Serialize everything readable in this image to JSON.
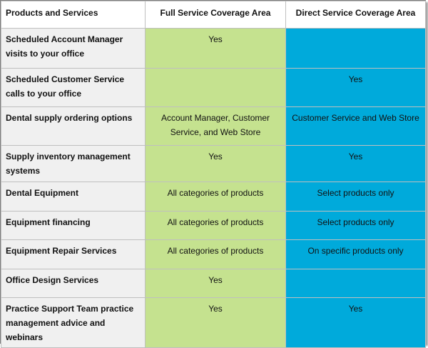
{
  "header": {
    "col1": "Products and Services",
    "col2": "Full Service Coverage Area",
    "col3": "Direct Service  Coverage Area"
  },
  "rows": [
    {
      "service": "Scheduled Account Manager visits to your office",
      "full": "Yes",
      "direct": ""
    },
    {
      "service": "Scheduled Customer Service calls to your office",
      "full": "",
      "direct": "Yes"
    },
    {
      "service": "Dental supply ordering options",
      "full": "Account Manager, Customer Service, and Web Store",
      "direct": "Customer Service and Web  Store"
    },
    {
      "service": "Supply inventory management systems",
      "full": "Yes",
      "direct": "Yes"
    },
    {
      "service": "Dental Equipment",
      "full": "All categories of products",
      "direct": "Select products only"
    },
    {
      "service": "Equipment financing",
      "full": "All categories of products",
      "direct": "Select products only"
    },
    {
      "service": "Equipment Repair Services",
      "full": "All categories of products",
      "direct": "On specific products only"
    },
    {
      "service": "Office Design Services",
      "full": "Yes",
      "direct": ""
    },
    {
      "service": "Practice Support Team practice management advice and webinars",
      "full": "Yes",
      "direct": "Yes"
    }
  ],
  "colors": {
    "full_service": "#c5e28f",
    "direct_service": "#00aadb",
    "service_column": "#f0f0f0",
    "border": "#bfbfbf"
  }
}
